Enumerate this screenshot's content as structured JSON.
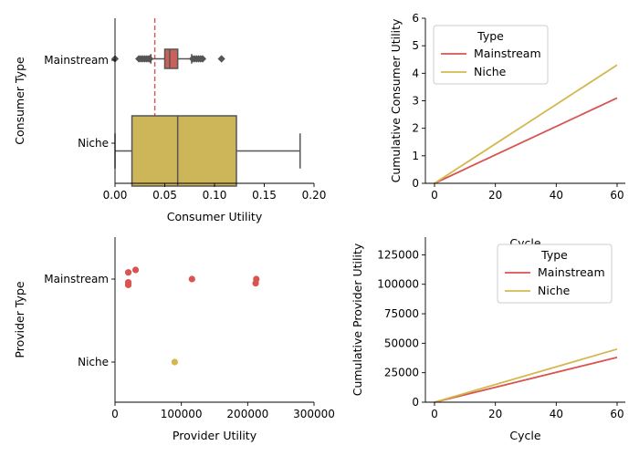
{
  "colors": {
    "mainstream": "#d9534f",
    "niche": "#d4b84f",
    "box_main": "#c9605a",
    "box_niche": "#cdb65a",
    "whisker": "#555555",
    "refline": "#d9534f"
  },
  "chart_data": [
    {
      "type": "box",
      "xlabel": "Consumer Utility",
      "ylabel": "Consumer Type",
      "xlim": [
        0,
        0.2
      ],
      "xticks": [
        "0.00",
        "0.05",
        "0.10",
        "0.15",
        "0.20"
      ],
      "categories": [
        "Mainstream",
        "Niche"
      ],
      "reference_line_x": 0.04,
      "boxes": [
        {
          "name": "Mainstream",
          "q1": 0.05,
          "median": 0.055,
          "q3": 0.063,
          "whisker_low": 0.036,
          "whisker_high": 0.077,
          "outliers": [
            0.0,
            0.024,
            0.026,
            0.028,
            0.03,
            0.032,
            0.034,
            0.035,
            0.078,
            0.08,
            0.082,
            0.084,
            0.086,
            0.088,
            0.107
          ]
        },
        {
          "name": "Niche",
          "q1": 0.017,
          "median": 0.063,
          "q3": 0.122,
          "whisker_low": 0.0,
          "whisker_high": 0.186,
          "outliers": []
        }
      ]
    },
    {
      "type": "line",
      "xlabel": "Cycle",
      "ylabel": "Cumulative Consumer Utility",
      "xlim": [
        0,
        60
      ],
      "ylim": [
        0,
        6
      ],
      "xticks": [
        "0",
        "20",
        "40",
        "60"
      ],
      "yticks": [
        "0",
        "1",
        "2",
        "3",
        "4",
        "5",
        "6"
      ],
      "legend_title": "Type",
      "legend_position": "top-left",
      "series": [
        {
          "name": "Mainstream",
          "x": [
            0,
            60
          ],
          "y": [
            0,
            3.1
          ]
        },
        {
          "name": "Niche",
          "x": [
            0,
            60
          ],
          "y": [
            0,
            4.3
          ]
        }
      ]
    },
    {
      "type": "scatter",
      "xlabel": "Provider Utility",
      "ylabel": "Provider Type",
      "xlim": [
        0,
        300000
      ],
      "xticks": [
        "0",
        "100000",
        "200000",
        "300000"
      ],
      "categories": [
        "Mainstream",
        "Niche"
      ],
      "points": [
        {
          "category": "Mainstream",
          "x": 20000,
          "offset": -0.08
        },
        {
          "category": "Mainstream",
          "x": 20000,
          "offset": 0.04
        },
        {
          "category": "Mainstream",
          "x": 20000,
          "offset": 0.07
        },
        {
          "category": "Mainstream",
          "x": 31000,
          "offset": -0.11
        },
        {
          "category": "Mainstream",
          "x": 116000,
          "offset": 0.0
        },
        {
          "category": "Mainstream",
          "x": 213000,
          "offset": 0.0
        },
        {
          "category": "Mainstream",
          "x": 212000,
          "offset": 0.05
        },
        {
          "category": "Niche",
          "x": 90000,
          "offset": 0.0
        }
      ]
    },
    {
      "type": "line",
      "xlabel": "Cycle",
      "ylabel": "Cumulative Provider Utility",
      "xlim": [
        0,
        60
      ],
      "ylim": [
        0,
        140000
      ],
      "xticks": [
        "0",
        "20",
        "40",
        "60"
      ],
      "yticks": [
        "0",
        "25000",
        "50000",
        "75000",
        "100000",
        "125000"
      ],
      "legend_title": "Type",
      "legend_position": "top-right",
      "series": [
        {
          "name": "Mainstream",
          "x": [
            0,
            60
          ],
          "y": [
            0,
            38000
          ]
        },
        {
          "name": "Niche",
          "x": [
            0,
            60
          ],
          "y": [
            0,
            45000
          ]
        }
      ]
    }
  ]
}
